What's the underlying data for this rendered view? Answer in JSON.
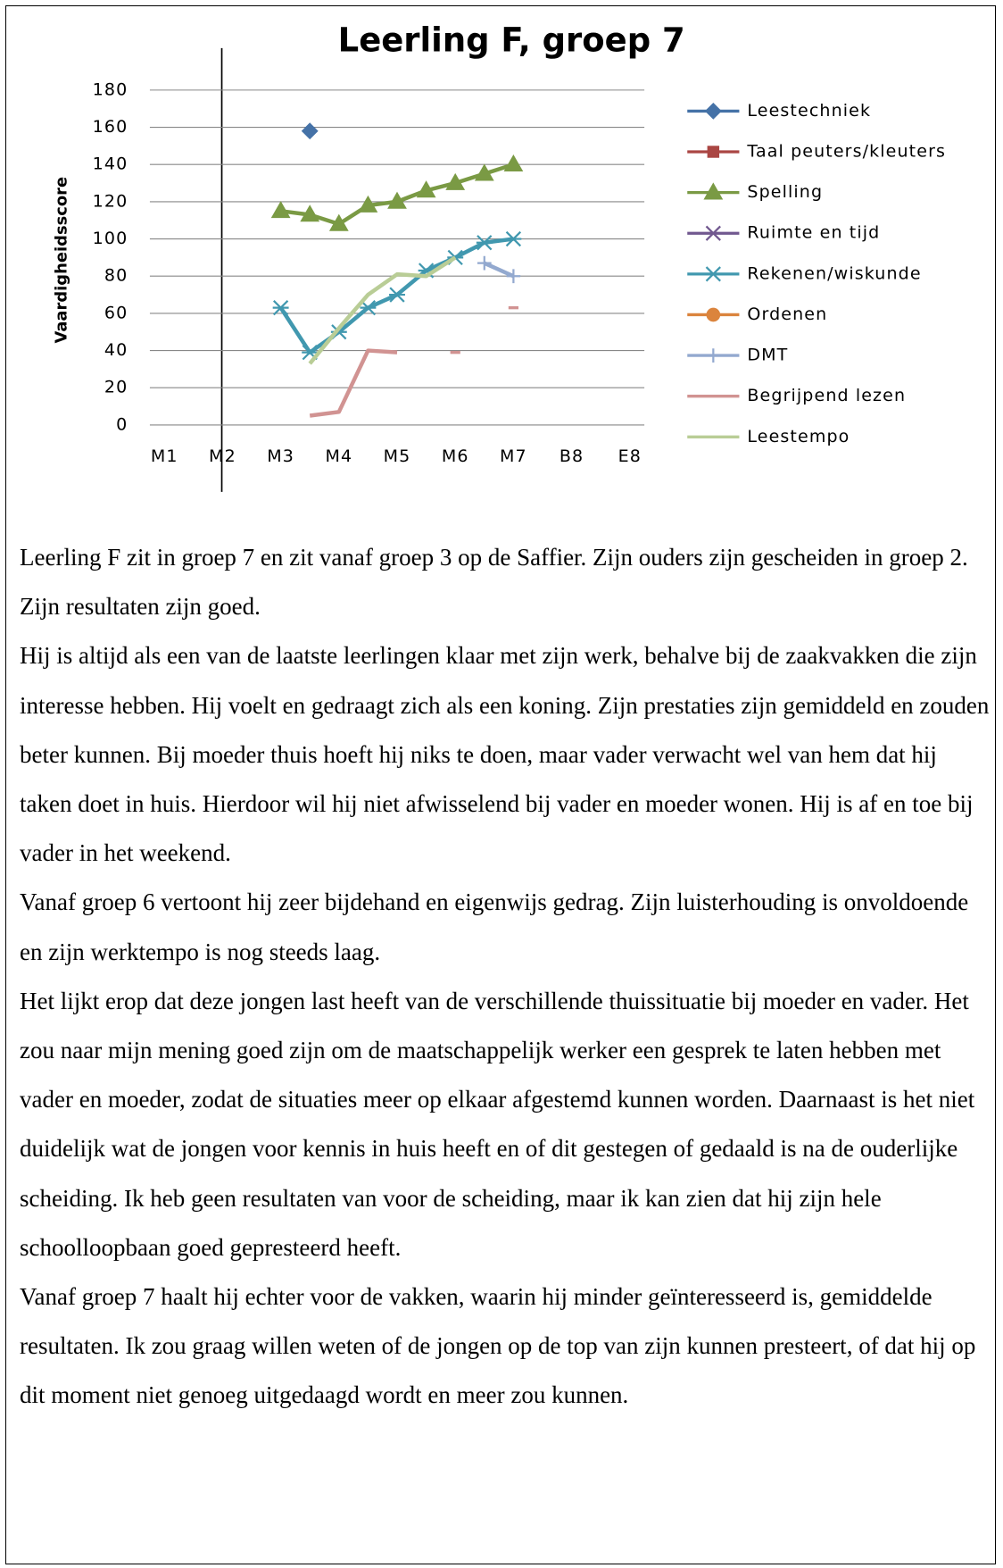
{
  "chart_data": {
    "type": "line",
    "title": "Leerling F, groep 7",
    "y_label": "Vaardigheidsscore",
    "categories": [
      "M1",
      null,
      "M2",
      null,
      "M3",
      null,
      "M4",
      null,
      "M5",
      null,
      "M6",
      null,
      "M7",
      null,
      "B8",
      null,
      "E8"
    ],
    "ylim": [
      0,
      180
    ],
    "yticks": [
      0,
      20,
      40,
      60,
      80,
      100,
      120,
      140,
      160,
      180
    ],
    "grid": true,
    "legend": "right",
    "series": [
      {
        "name": "Leestechniek",
        "color": "#4572a7",
        "marker": "diamond",
        "values": [
          null,
          null,
          null,
          null,
          null,
          158,
          null,
          null,
          null,
          null,
          null,
          null,
          null,
          null,
          null,
          null,
          null
        ]
      },
      {
        "name": "Taal peuters/kleuters",
        "color": "#aa4643",
        "marker": "square",
        "values": [
          null,
          null,
          null,
          null,
          null,
          null,
          null,
          null,
          null,
          null,
          null,
          null,
          null,
          null,
          null,
          null,
          null
        ]
      },
      {
        "name": "Spelling",
        "color": "#7a9a44",
        "marker": "triangle",
        "values": [
          null,
          null,
          null,
          null,
          115,
          113,
          108,
          118,
          120,
          126,
          130,
          135,
          140,
          null,
          null,
          null,
          null
        ]
      },
      {
        "name": "Ruimte en tijd",
        "color": "#71588f",
        "marker": "x",
        "values": [
          null,
          null,
          null,
          null,
          null,
          null,
          null,
          null,
          null,
          null,
          null,
          null,
          null,
          null,
          null,
          null,
          null
        ]
      },
      {
        "name": "Rekenen/wiskunde",
        "color": "#4198af",
        "marker": "star",
        "values": [
          null,
          null,
          null,
          null,
          63,
          39,
          50,
          63,
          70,
          83,
          90,
          98,
          100,
          null,
          null,
          null,
          null
        ]
      },
      {
        "name": "Ordenen",
        "color": "#db843d",
        "marker": "circle",
        "values": [
          null,
          null,
          null,
          null,
          null,
          null,
          null,
          null,
          null,
          null,
          null,
          null,
          null,
          null,
          null,
          null,
          null
        ]
      },
      {
        "name": "DMT",
        "color": "#93a9cf",
        "marker": "plus",
        "values": [
          null,
          null,
          null,
          null,
          null,
          null,
          null,
          null,
          null,
          null,
          null,
          87,
          80,
          null,
          null,
          null,
          null
        ]
      },
      {
        "name": "Begrijpend lezen",
        "color": "#d19392",
        "marker": "none",
        "values": [
          null,
          null,
          null,
          null,
          null,
          5,
          7,
          40,
          39,
          null,
          39,
          null,
          63,
          null,
          null,
          null,
          null
        ]
      },
      {
        "name": "Leestempo",
        "color": "#b9cd96",
        "marker": "none",
        "values": [
          null,
          null,
          null,
          null,
          null,
          33,
          52,
          70,
          81,
          80,
          90,
          null,
          null,
          null,
          null,
          null,
          null
        ]
      }
    ]
  },
  "paragraphs": [
    "Leerling F zit in groep 7 en zit vanaf groep 3 op de Saffier. Zijn ouders zijn gescheiden in groep 2. Zijn resultaten zijn goed.",
    "Hij is altijd als een van de laatste leerlingen klaar met zijn werk, behalve bij de zaakvakken die zijn interesse hebben. Hij voelt en gedraagt zich als een koning. Zijn prestaties zijn gemiddeld en zouden beter kunnen. Bij moeder thuis hoeft hij niks te doen, maar vader verwacht wel van hem dat hij taken doet in huis. Hierdoor wil hij niet afwisselend bij vader en moeder wonen. Hij is af en toe bij vader in het weekend.",
    "Vanaf groep 6 vertoont hij zeer bijdehand en eigenwijs gedrag. Zijn luisterhouding is onvoldoende en zijn werktempo is nog steeds laag.",
    "Het lijkt erop dat deze jongen last heeft van de verschillende thuissituatie bij moeder en vader. Het zou naar mijn mening goed zijn om de maatschappelijk werker een gesprek te laten hebben met vader en moeder, zodat de situaties meer op elkaar afgestemd kunnen worden. Daarnaast is het niet duidelijk wat de jongen voor kennis in huis heeft en of dit gestegen of gedaald is na de ouderlijke scheiding. Ik heb geen resultaten van voor de scheiding, maar ik kan zien dat hij zijn hele schoolloopbaan goed gepresteerd heeft.",
    "Vanaf groep 7 haalt hij echter voor de vakken, waarin hij minder geïnteresseerd is, gemiddelde resultaten. Ik zou graag willen weten of de jongen op de top van zijn kunnen presteert, of dat hij op dit moment niet genoeg uitgedaagd wordt en meer zou kunnen."
  ]
}
